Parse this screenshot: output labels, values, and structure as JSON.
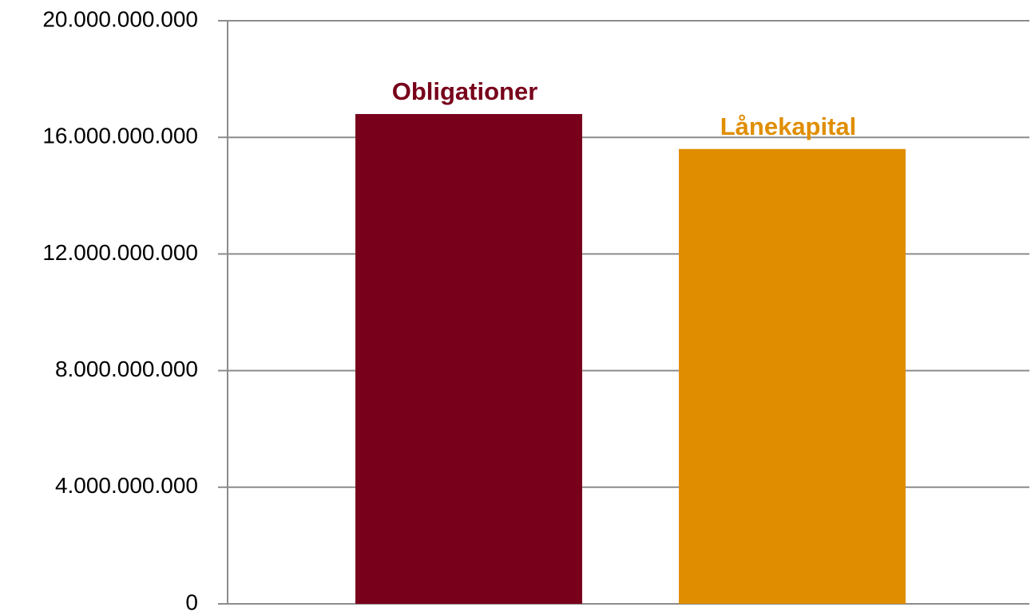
{
  "chart_data": {
    "type": "bar",
    "categories": [
      "Obligationer",
      "Lånekapital"
    ],
    "values": [
      16800000000,
      15600000000
    ],
    "colors": [
      "#78001a",
      "#e08e00"
    ],
    "ylim": [
      0,
      20000000000
    ],
    "yticks": [
      0,
      {
        "value": 4000000000,
        "label": "4.000.000.000"
      },
      {
        "value": 8000000000,
        "label": "8.000.000.000"
      },
      {
        "value": 12000000000,
        "label": "12.000.000.000"
      },
      {
        "value": 16000000000,
        "label": "16.000.000.000"
      },
      {
        "value": 20000000000,
        "label": "20.000.000.000"
      }
    ],
    "grid": true
  }
}
